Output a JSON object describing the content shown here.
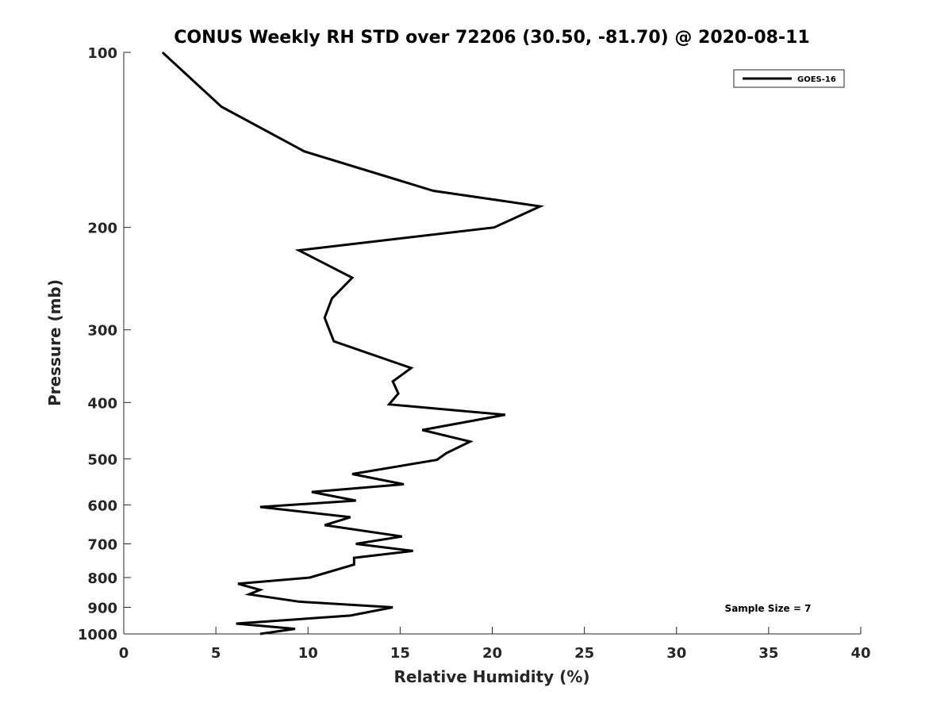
{
  "chart_data": {
    "type": "line",
    "title": "CONUS Weekly RH STD over 72206 (30.50, -81.70) @ 2020-08-11",
    "xlabel": "Relative Humidity (%)",
    "ylabel": "Pressure (mb)",
    "xlim": [
      0,
      40
    ],
    "ylim": [
      100,
      1000
    ],
    "yscale": "log",
    "yreversed": true,
    "grid": false,
    "legend_position": "top-right",
    "xticks": [
      0,
      5,
      10,
      15,
      20,
      25,
      30,
      35,
      40
    ],
    "yticks": [
      100,
      200,
      300,
      400,
      500,
      600,
      700,
      800,
      900,
      1000
    ],
    "annotation": "Sample Size = 7",
    "series": [
      {
        "name": "GOES-16",
        "color": "#000000",
        "x": [
          2.1,
          5.3,
          9.8,
          16.8,
          22.6,
          20.1,
          9.5,
          12.4,
          11.3,
          10.9,
          11.4,
          15.6,
          14.6,
          14.9,
          14.4,
          20.7,
          16.2,
          18.8,
          17.5,
          17.0,
          12.4,
          15.2,
          10.2,
          12.6,
          7.4,
          12.3,
          10.9,
          15.1,
          12.6,
          15.7,
          12.5,
          12.5,
          10.1,
          6.2,
          7.4,
          6.8,
          9.5,
          14.6,
          12.3,
          6.1,
          9.3,
          7.4
        ],
        "y": [
          100,
          124,
          148,
          173,
          184,
          200,
          219,
          244,
          265,
          286,
          314,
          349,
          368,
          386,
          403,
          420,
          446,
          467,
          489,
          502,
          531,
          553,
          570,
          590,
          605,
          630,
          650,
          680,
          700,
          720,
          740,
          760,
          800,
          820,
          840,
          855,
          880,
          900,
          930,
          960,
          980,
          1000
        ]
      }
    ]
  }
}
